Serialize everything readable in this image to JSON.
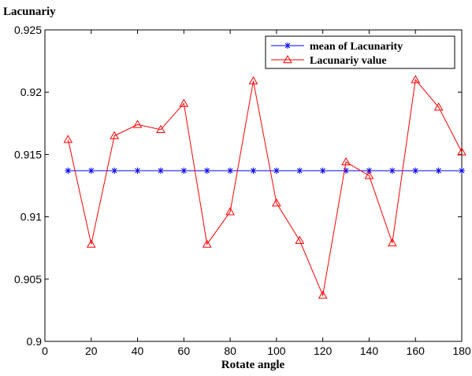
{
  "chart_data": {
    "type": "line",
    "ylabel": "Lacunariy",
    "xlabel": "Rotate angle",
    "xlim": [
      0,
      180
    ],
    "ylim": [
      0.9,
      0.925
    ],
    "x_ticks": [
      0,
      20,
      40,
      60,
      80,
      100,
      120,
      140,
      160,
      180
    ],
    "x_tick_labels": [
      "0",
      "20",
      "40",
      "60",
      "80",
      "100",
      "120",
      "140",
      "160",
      "180"
    ],
    "y_ticks": [
      0.9,
      0.905,
      0.91,
      0.915,
      0.92,
      0.925
    ],
    "y_tick_labels": [
      "0.9",
      "0.905",
      "0.91",
      "0.915",
      "0.92",
      "0.925"
    ],
    "grid": false,
    "legend_position": "top-right",
    "x": [
      10,
      20,
      30,
      40,
      50,
      60,
      70,
      80,
      90,
      100,
      110,
      120,
      130,
      140,
      150,
      160,
      170,
      180
    ],
    "series": [
      {
        "name": "mean of  Lacunarity",
        "color": "#0000ff",
        "marker": "asterisk",
        "values": [
          0.9137,
          0.9137,
          0.9137,
          0.9137,
          0.9137,
          0.9137,
          0.9137,
          0.9137,
          0.9137,
          0.9137,
          0.9137,
          0.9137,
          0.9137,
          0.9137,
          0.9137,
          0.9137,
          0.9137,
          0.9137
        ]
      },
      {
        "name": "Lacunariy value",
        "color": "#ff0000",
        "marker": "triangle",
        "values": [
          0.9162,
          0.9078,
          0.9165,
          0.9174,
          0.917,
          0.9191,
          0.9078,
          0.9104,
          0.9209,
          0.9111,
          0.9081,
          0.9037,
          0.9144,
          0.9133,
          0.9079,
          0.921,
          0.9188,
          0.9152
        ]
      }
    ]
  }
}
